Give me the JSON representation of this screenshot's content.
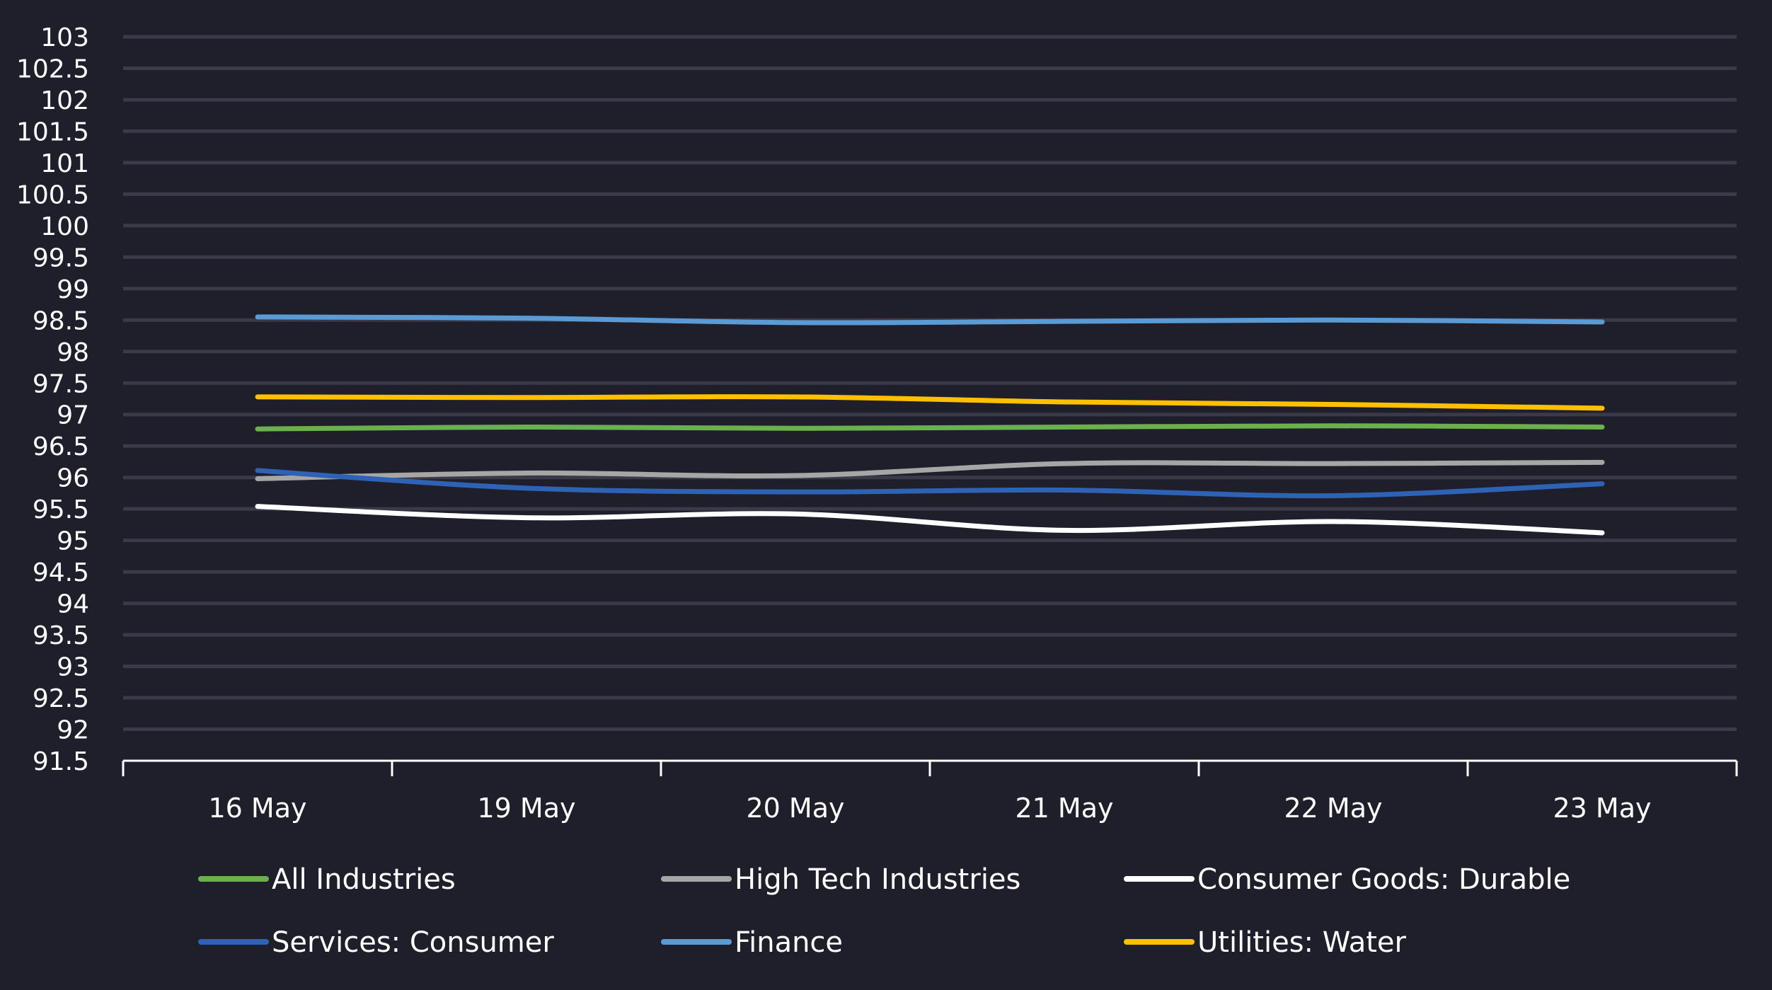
{
  "chart_data": {
    "type": "line",
    "categories": [
      "16 May",
      "19 May",
      "20 May",
      "21 May",
      "22 May",
      "23 May"
    ],
    "ylim": [
      91.5,
      103
    ],
    "ytick_step": 0.5,
    "yticks": [
      "91.5",
      "92",
      "92.5",
      "93",
      "93.5",
      "94",
      "94.5",
      "95",
      "95.5",
      "96",
      "96.5",
      "97",
      "97.5",
      "98",
      "98.5",
      "99",
      "99.5",
      "100",
      "100.5",
      "101",
      "101.5",
      "102",
      "102.5",
      "103"
    ],
    "grid": true,
    "legend_position": "bottom",
    "series": [
      {
        "name": "All Industries",
        "color": "#6ab04c",
        "values": [
          96.77,
          96.8,
          96.78,
          96.8,
          96.82,
          96.8
        ]
      },
      {
        "name": "High Tech Industries",
        "color": "#a6a6a6",
        "values": [
          95.98,
          96.07,
          96.03,
          96.22,
          96.22,
          96.24
        ]
      },
      {
        "name": "Consumer Goods: Durable",
        "color": "#ffffff",
        "values": [
          95.54,
          95.36,
          95.42,
          95.16,
          95.3,
          95.12
        ]
      },
      {
        "name": "Services: Consumer",
        "color": "#2e62b4",
        "values": [
          96.11,
          95.83,
          95.77,
          95.8,
          95.71,
          95.9
        ]
      },
      {
        "name": "Finance",
        "color": "#5b9bd5",
        "values": [
          98.55,
          98.53,
          98.46,
          98.48,
          98.5,
          98.47
        ]
      },
      {
        "name": "Utilities: Water",
        "color": "#ffc000",
        "values": [
          97.28,
          97.27,
          97.28,
          97.2,
          97.16,
          97.1
        ]
      }
    ]
  }
}
